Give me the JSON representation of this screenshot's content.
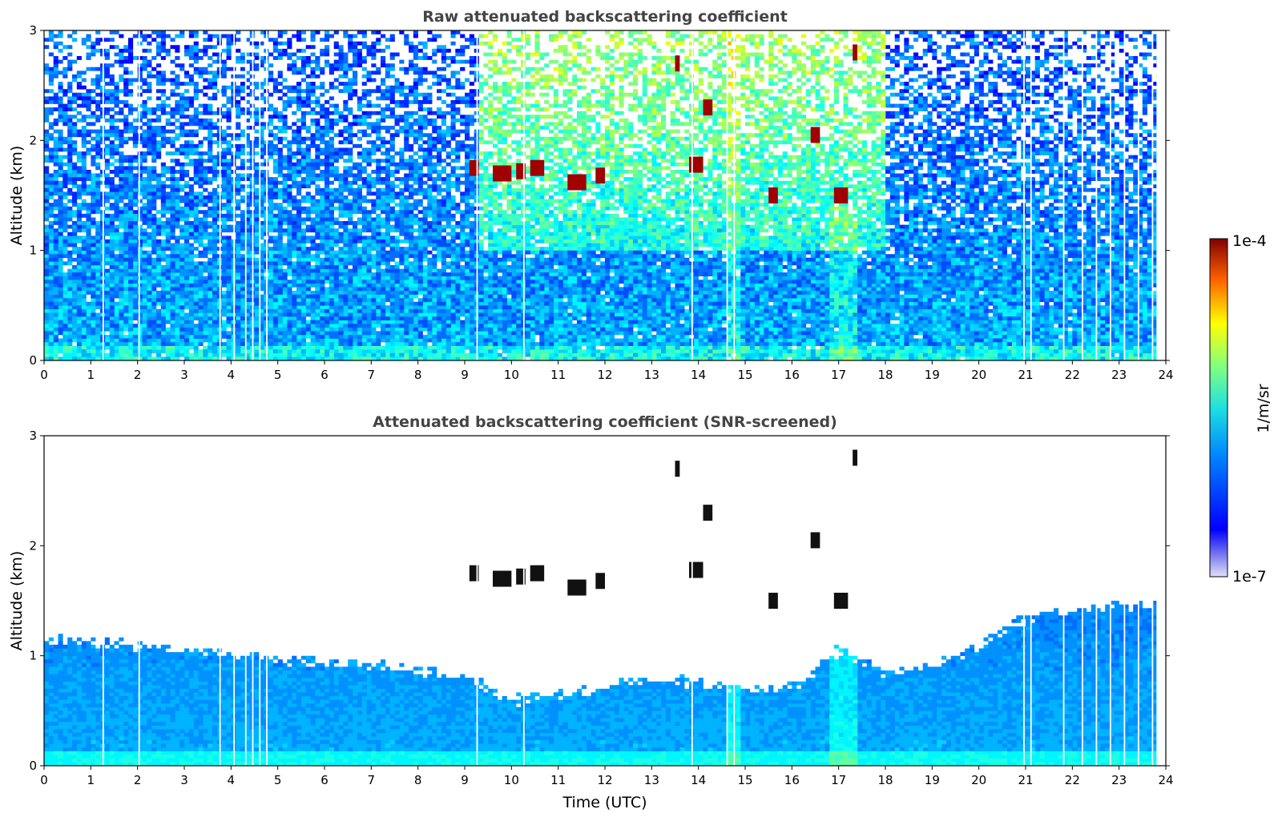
{
  "chart_data": [
    {
      "type": "heatmap",
      "title": "Raw attenuated backscattering coefficient",
      "xlabel": "",
      "ylabel": "Altitude (km)",
      "xlim": [
        0,
        24
      ],
      "ylim": [
        0,
        3
      ],
      "xticks": [
        "0",
        "1",
        "2",
        "3",
        "4",
        "5",
        "6",
        "7",
        "8",
        "9",
        "10",
        "11",
        "12",
        "13",
        "14",
        "15",
        "16",
        "17",
        "18",
        "19",
        "20",
        "21",
        "22",
        "23",
        "24"
      ],
      "yticks": [
        "0",
        "1",
        "2",
        "3"
      ],
      "mode": "raw",
      "colorscale": "jet",
      "cloud_features": [
        {
          "t_start": 9.1,
          "t_end": 9.3,
          "alt_km": 1.75
        },
        {
          "t_start": 9.6,
          "t_end": 10.0,
          "alt_km": 1.7
        },
        {
          "t_start": 10.1,
          "t_end": 10.3,
          "alt_km": 1.72
        },
        {
          "t_start": 10.4,
          "t_end": 10.7,
          "alt_km": 1.75
        },
        {
          "t_start": 11.2,
          "t_end": 11.6,
          "alt_km": 1.62
        },
        {
          "t_start": 11.8,
          "t_end": 12.0,
          "alt_km": 1.68
        },
        {
          "t_start": 13.5,
          "t_end": 13.6,
          "alt_km": 2.7
        },
        {
          "t_start": 13.8,
          "t_end": 14.1,
          "alt_km": 1.78
        },
        {
          "t_start": 14.1,
          "t_end": 14.3,
          "alt_km": 2.3
        },
        {
          "t_start": 15.5,
          "t_end": 15.7,
          "alt_km": 1.5
        },
        {
          "t_start": 16.4,
          "t_end": 16.6,
          "alt_km": 2.05
        },
        {
          "t_start": 16.9,
          "t_end": 17.2,
          "alt_km": 1.5
        },
        {
          "t_start": 17.3,
          "t_end": 17.4,
          "alt_km": 2.8
        }
      ]
    },
    {
      "type": "heatmap",
      "title": "Attenuated backscattering coefficient (SNR-screened)",
      "xlabel": "Time (UTC)",
      "ylabel": "Altitude (km)",
      "xlim": [
        0,
        24
      ],
      "ylim": [
        0,
        3
      ],
      "xticks": [
        "0",
        "1",
        "2",
        "3",
        "4",
        "5",
        "6",
        "7",
        "8",
        "9",
        "10",
        "11",
        "12",
        "13",
        "14",
        "15",
        "16",
        "17",
        "18",
        "19",
        "20",
        "21",
        "22",
        "23",
        "24"
      ],
      "yticks": [
        "0",
        "1",
        "2",
        "3"
      ],
      "mode": "screened",
      "colorscale": "jet",
      "boundary_layer_top_km": [
        [
          0,
          1.15
        ],
        [
          1,
          1.12
        ],
        [
          2,
          1.1
        ],
        [
          3,
          1.05
        ],
        [
          4,
          1.02
        ],
        [
          5,
          0.98
        ],
        [
          6,
          0.95
        ],
        [
          7,
          0.92
        ],
        [
          8,
          0.85
        ],
        [
          9,
          0.82
        ],
        [
          10,
          0.6
        ],
        [
          11,
          0.65
        ],
        [
          12,
          0.7
        ],
        [
          13,
          0.8
        ],
        [
          14,
          0.75
        ],
        [
          15,
          0.7
        ],
        [
          16,
          0.7
        ],
        [
          17,
          1.05
        ],
        [
          18,
          0.85
        ],
        [
          19,
          0.9
        ],
        [
          20,
          1.1
        ],
        [
          21,
          1.35
        ],
        [
          22,
          1.4
        ],
        [
          23,
          1.45
        ],
        [
          23.8,
          1.5
        ]
      ]
    }
  ],
  "colorbar": {
    "label": "1/m/sr",
    "max_label": "1e-4",
    "min_label": "1e-7",
    "scale": "log",
    "range": [
      1e-07,
      0.0001
    ]
  }
}
